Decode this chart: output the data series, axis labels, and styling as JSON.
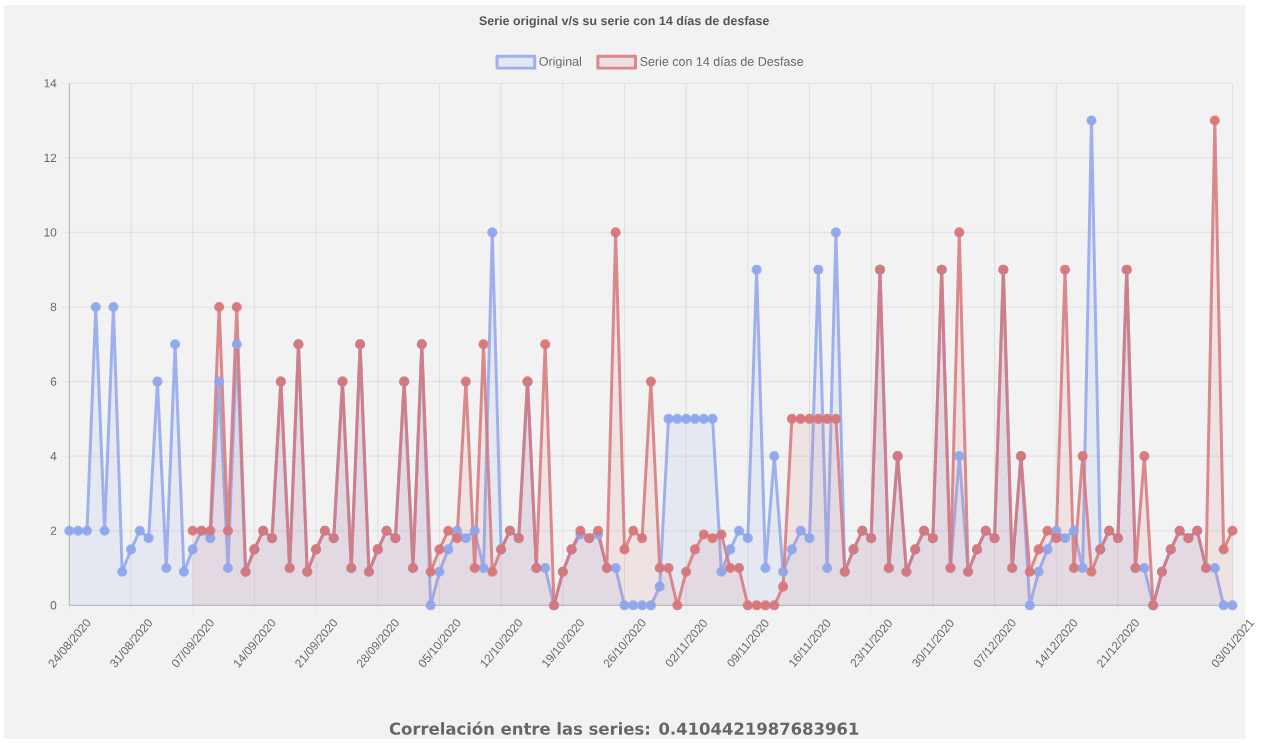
{
  "chart_data": {
    "type": "area",
    "title": "Serie original v/s su serie con 14 días de desfase",
    "categories": [
      "24/08/2020",
      null,
      null,
      null,
      null,
      null,
      null,
      "31/08/2020",
      null,
      null,
      null,
      null,
      null,
      null,
      "07/09/2020",
      null,
      null,
      null,
      null,
      null,
      null,
      "14/09/2020",
      null,
      null,
      null,
      null,
      null,
      null,
      "21/09/2020",
      null,
      null,
      null,
      null,
      null,
      null,
      "28/09/2020",
      null,
      null,
      null,
      null,
      null,
      null,
      "05/10/2020",
      null,
      null,
      null,
      null,
      null,
      null,
      "12/10/2020",
      null,
      null,
      null,
      null,
      null,
      null,
      "19/10/2020",
      null,
      null,
      null,
      null,
      null,
      null,
      "26/10/2020",
      null,
      null,
      null,
      null,
      null,
      null,
      "02/11/2020",
      null,
      null,
      null,
      null,
      null,
      null,
      "09/11/2020",
      null,
      null,
      null,
      null,
      null,
      null,
      "16/11/2020",
      null,
      null,
      null,
      null,
      null,
      null,
      "23/11/2020",
      null,
      null,
      null,
      null,
      null,
      null,
      "30/11/2020",
      null,
      null,
      null,
      null,
      null,
      null,
      "07/12/2020",
      null,
      null,
      null,
      null,
      null,
      null,
      "14/12/2020",
      null,
      null,
      null,
      null,
      null,
      null,
      "21/12/2020",
      null,
      null,
      null,
      null,
      null,
      null,
      null,
      null,
      null,
      null,
      null,
      null,
      "03/01/2021"
    ],
    "series": [
      {
        "name": "Original",
        "color": "#8fa6ec",
        "values": [
          2,
          2,
          2,
          8,
          2,
          8,
          0.9,
          1.5,
          2,
          1.8,
          6,
          1,
          7,
          0.9,
          1.5,
          2,
          1.8,
          6,
          1,
          7,
          0.9,
          1.5,
          2,
          1.8,
          6,
          1,
          7,
          0.9,
          1.5,
          2,
          1.8,
          6,
          1,
          7,
          0.9,
          1.5,
          2,
          1.8,
          6,
          1,
          7,
          0,
          0.9,
          1.5,
          2,
          1.8,
          2,
          1,
          10,
          1.5,
          2,
          1.8,
          6,
          1,
          1,
          0,
          0.9,
          1.5,
          1.9,
          1.8,
          1.9,
          1,
          1,
          0,
          0,
          0,
          0,
          0.5,
          5,
          5,
          5,
          5,
          5,
          5,
          0.9,
          1.5,
          2,
          1.8,
          9,
          1,
          4,
          0.9,
          1.5,
          2,
          1.8,
          9,
          1,
          10,
          0.9,
          1.5,
          2,
          1.8,
          9,
          1,
          4,
          0.9,
          1.5,
          2,
          1.8,
          9,
          1,
          4,
          0.9,
          1.5,
          2,
          1.8,
          9,
          1,
          4,
          0,
          0.9,
          1.5,
          2,
          1.8,
          2,
          1,
          13,
          1.5,
          2,
          1.8,
          9,
          1,
          1,
          0,
          0.9,
          1.5,
          2,
          1.8,
          2,
          1,
          1,
          0,
          0
        ]
      },
      {
        "name": "Serie con 14 días de Desfase",
        "color": "#d7777a",
        "values": [
          null,
          null,
          null,
          null,
          null,
          null,
          null,
          null,
          null,
          null,
          null,
          null,
          null,
          null,
          2,
          2,
          2,
          8,
          2,
          8,
          0.9,
          1.5,
          2,
          1.8,
          6,
          1,
          7,
          0.9,
          1.5,
          2,
          1.8,
          6,
          1,
          7,
          0.9,
          1.5,
          2,
          1.8,
          6,
          1,
          7,
          0.9,
          1.5,
          2,
          1.8,
          6,
          1,
          7,
          0.9,
          1.5,
          2,
          1.8,
          6,
          1,
          7,
          0,
          0.9,
          1.5,
          2,
          1.8,
          2,
          1,
          10,
          1.5,
          2,
          1.8,
          6,
          1,
          1,
          0,
          0.9,
          1.5,
          1.9,
          1.8,
          1.9,
          1,
          1,
          0,
          0,
          0,
          0,
          0.5,
          5,
          5,
          5,
          5,
          5,
          5,
          0.9,
          1.5,
          2,
          1.8,
          9,
          1,
          4,
          0.9,
          1.5,
          2,
          1.8,
          9,
          1,
          10,
          0.9,
          1.5,
          2,
          1.8,
          9,
          1,
          4,
          0.9,
          1.5,
          2,
          1.8,
          9,
          1,
          4,
          0.9,
          1.5,
          2,
          1.8,
          9,
          1,
          4,
          0,
          0.9,
          1.5,
          2,
          1.8,
          2,
          1,
          13,
          1.5,
          2
        ]
      }
    ],
    "ylim": [
      0,
      14
    ],
    "yticks": [
      0,
      2,
      4,
      6,
      8,
      10,
      12,
      14
    ],
    "grid": true,
    "legend": "top",
    "marker": "circle",
    "annotations": [
      "Correlación entre las series: 0.4104421987683961"
    ]
  }
}
